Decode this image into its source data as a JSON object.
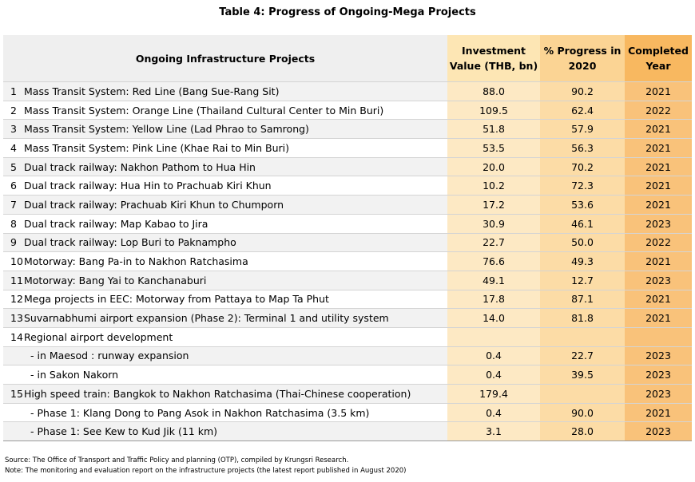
{
  "title": "Table 4: Progress of Ongoing-Mega Projects",
  "headers": {
    "project": "Ongoing Infrastructure Projects",
    "investment": [
      "Investment",
      "Value (THB, bn)"
    ],
    "progress": [
      "% Progress in",
      "2020"
    ],
    "completed": [
      "Completed",
      "Year"
    ]
  },
  "rows": [
    {
      "no": "1",
      "name": "Mass Transit System: Red Line (Bang Sue-Rang Sit)",
      "investment": "88.0",
      "progress": "90.2",
      "year": "2021"
    },
    {
      "no": "2",
      "name": "Mass Transit System: Orange Line (Thailand Cultural Center to Min Buri)",
      "investment": "109.5",
      "progress": "62.4",
      "year": "2022"
    },
    {
      "no": "3",
      "name": "Mass Transit System: Yellow Line (Lad Phrao to Samrong)",
      "investment": "51.8",
      "progress": "57.9",
      "year": "2021"
    },
    {
      "no": "4",
      "name": "Mass Transit System: Pink Line (Khae Rai to Min Buri)",
      "investment": "53.5",
      "progress": "56.3",
      "year": "2021"
    },
    {
      "no": "5",
      "name": "Dual track railway: Nakhon Pathom to Hua Hin",
      "investment": "20.0",
      "progress": "70.2",
      "year": "2021"
    },
    {
      "no": "6",
      "name": "Dual track railway: Hua Hin to Prachuab Kiri Khun",
      "investment": "10.2",
      "progress": "72.3",
      "year": "2021"
    },
    {
      "no": "7",
      "name": "Dual track railway:  Prachuab Kiri Khun to Chumporn",
      "investment": "17.2",
      "progress": "53.6",
      "year": "2021"
    },
    {
      "no": "8",
      "name": "Dual track railway: Map Kabao to Jira",
      "investment": "30.9",
      "progress": "46.1",
      "year": "2023"
    },
    {
      "no": "9",
      "name": "Dual track railway: Lop Buri to Paknampho",
      "investment": "22.7",
      "progress": "50.0",
      "year": "2022"
    },
    {
      "no": "10",
      "name": "Motorway: Bang Pa-in to Nakhon Ratchasima",
      "investment": "76.6",
      "progress": "49.3",
      "year": "2021"
    },
    {
      "no": "11",
      "name": "Motorway: Bang Yai to Kanchanaburi",
      "investment": "49.1",
      "progress": "12.7",
      "year": "2023"
    },
    {
      "no": "12",
      "name": "Mega projects in EEC: Motorway from Pattaya to Map Ta Phut",
      "investment": "17.8",
      "progress": "87.1",
      "year": "2021"
    },
    {
      "no": "13",
      "name": "Suvarnabhumi airport expansion (Phase 2): Terminal 1 and utility system",
      "investment": "14.0",
      "progress": "81.8",
      "year": "2021"
    },
    {
      "no": "14",
      "name": "Regional airport development",
      "investment": "",
      "progress": "",
      "year": ""
    },
    {
      "no": "",
      "name": "- in Maesod : runway expansion",
      "investment": "0.4",
      "progress": "22.7",
      "year": "2023",
      "sub": true
    },
    {
      "no": "",
      "name": "- in Sakon Nakorn",
      "investment": "0.4",
      "progress": "39.5",
      "year": "2023",
      "sub": true
    },
    {
      "no": "15",
      "name": "High speed train: Bangkok to Nakhon Ratchasima (Thai-Chinese cooperation)",
      "investment": "179.4",
      "progress": "",
      "year": "2023"
    },
    {
      "no": "",
      "name": "- Phase 1: Klang Dong to Pang Asok in Nakhon Ratchasima (3.5 km)",
      "investment": "0.4",
      "progress": "90.0",
      "year": "2021",
      "sub": true
    },
    {
      "no": "",
      "name": "- Phase 1: See Kew to Kud Jik  (11 km)",
      "investment": "3.1",
      "progress": "28.0",
      "year": "2023",
      "sub": true
    }
  ],
  "footnotes": {
    "source": "Source: The Office of Transport and Traffic Policy and planning (OTP), compiled by Krungsri Research.",
    "note": "Note: The monitoring and evaluation report on the infrastructure projects (the latest report published in August 2020)"
  }
}
